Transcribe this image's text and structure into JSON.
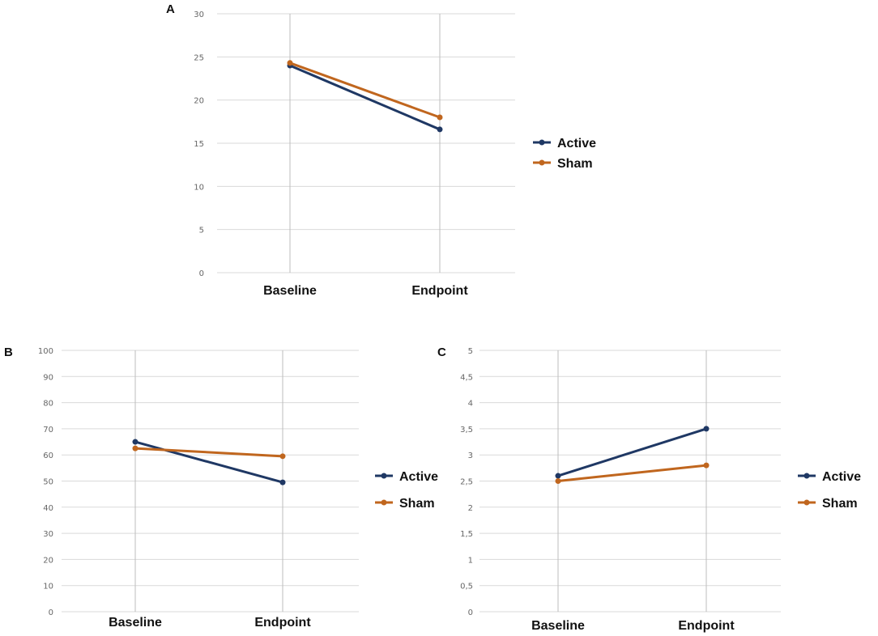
{
  "chart_data": [
    {
      "panel": "A",
      "type": "line",
      "categories": [
        "Baseline",
        "Endpoint"
      ],
      "series": [
        {
          "name": "Active",
          "color": "#1f3864",
          "values": [
            24.0,
            16.6
          ]
        },
        {
          "name": "Sham",
          "color": "#c0661e",
          "values": [
            24.3,
            18.0
          ]
        }
      ],
      "ylim": [
        0,
        30
      ],
      "yticks": [
        0,
        5,
        10,
        15,
        20,
        25,
        30
      ],
      "ytick_labels": [
        "0",
        "5",
        "10",
        "15",
        "20",
        "25",
        "30"
      ],
      "grid": true,
      "legend": "right"
    },
    {
      "panel": "B",
      "type": "line",
      "categories": [
        "Baseline",
        "Endpoint"
      ],
      "series": [
        {
          "name": "Active",
          "color": "#1f3864",
          "values": [
            65,
            49.5
          ]
        },
        {
          "name": "Sham",
          "color": "#c0661e",
          "values": [
            62.5,
            59.5
          ]
        }
      ],
      "ylim": [
        0,
        100
      ],
      "yticks": [
        0,
        10,
        20,
        30,
        40,
        50,
        60,
        70,
        80,
        90,
        100
      ],
      "ytick_labels": [
        "0",
        "10",
        "20",
        "30",
        "40",
        "50",
        "60",
        "70",
        "80",
        "90",
        "100"
      ],
      "grid": true,
      "legend": "right"
    },
    {
      "panel": "C",
      "type": "line",
      "categories": [
        "Baseline",
        "Endpoint"
      ],
      "series": [
        {
          "name": "Active",
          "color": "#1f3864",
          "values": [
            2.6,
            3.5
          ]
        },
        {
          "name": "Sham",
          "color": "#c0661e",
          "values": [
            2.5,
            2.8
          ]
        }
      ],
      "ylim": [
        0,
        5
      ],
      "yticks": [
        0,
        0.5,
        1,
        1.5,
        2,
        2.5,
        3,
        3.5,
        4,
        4.5,
        5
      ],
      "ytick_labels": [
        "0",
        "0,5",
        "1",
        "1,5",
        "2",
        "2,5",
        "3",
        "3,5",
        "4",
        "4,5",
        "5"
      ],
      "grid": true,
      "legend": "right"
    }
  ]
}
